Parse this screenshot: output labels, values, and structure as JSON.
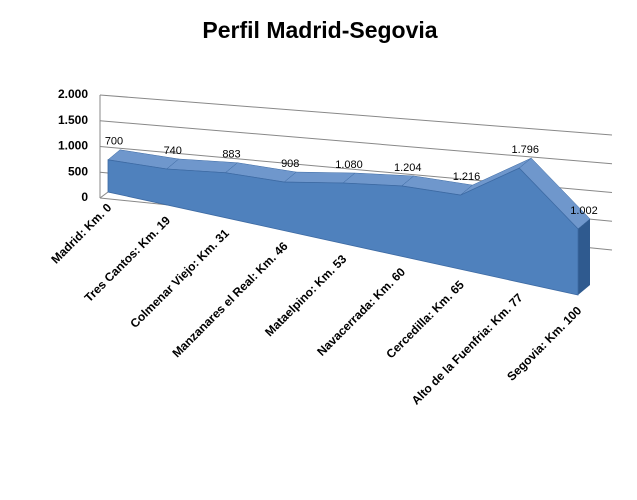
{
  "chart_data": {
    "type": "area3d",
    "title": "Perfil Madrid-Segovia",
    "categories": [
      "Madrid: Km. 0",
      "Tres Cantos: Km. 19",
      "Colmenar Viejo: Km. 31",
      "Manzanares el Real: Km. 46",
      "Mataelpino: Km. 53",
      "Navacerrada: Km. 60",
      "Cercedilla: Km. 65",
      "Alto de la Fuenfria: Km. 77",
      "Segovia: Km. 100"
    ],
    "values": [
      700,
      740,
      883,
      908,
      1080,
      1204,
      1216,
      1796,
      1002
    ],
    "value_labels": [
      "700",
      "740",
      "883",
      "908",
      "1.080",
      "1.204",
      "1.216",
      "1.796",
      "1.002"
    ],
    "color": "#4f81bd",
    "ylim": [
      0,
      2000
    ],
    "yticks": [
      0,
      500,
      {
        "value": 1000,
        "label": "1.000"
      },
      {
        "value": 1500,
        "label": "1.500"
      },
      {
        "value": 2000,
        "label": "2.000"
      }
    ],
    "grid": true
  }
}
